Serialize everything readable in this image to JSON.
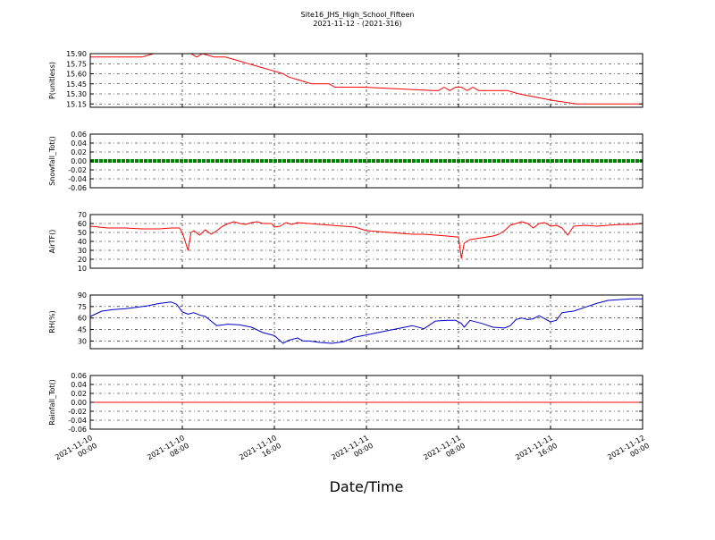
{
  "figure": {
    "title_line1": "Site16_JHS_High_School_Fifteen",
    "title_line2": "2021-11-12 - (2021-316)",
    "xlabel": "Date/Time",
    "x_ticks": [
      {
        "line1": "2021-11-10",
        "line2": "00:00"
      },
      {
        "line1": "2021-11-10",
        "line2": "08:00"
      },
      {
        "line1": "2021-11-10",
        "line2": "16:00"
      },
      {
        "line1": "2021-11-11",
        "line2": "00:00"
      },
      {
        "line1": "2021-11-11",
        "line2": "08:00"
      },
      {
        "line1": "2021-11-11",
        "line2": "16:00"
      },
      {
        "line1": "2021-11-12",
        "line2": "00:00"
      }
    ]
  },
  "chart_data": [
    {
      "type": "line",
      "ylabel": "P(unitless)",
      "ylim": [
        15.1,
        15.9
      ],
      "yticks": [
        15.15,
        15.3,
        15.45,
        15.6,
        15.75,
        15.9
      ],
      "ytick_labels": [
        "15.15",
        "15.30",
        "15.45",
        "15.60",
        "15.75",
        "15.90"
      ],
      "xlim": [
        "2021-11-10 00:00",
        "2021-11-12 00:00"
      ],
      "grid": true,
      "color": "#ff0000",
      "series": [
        {
          "x": [
            "2021-11-10 00:00",
            "2021-11-10 04:30",
            "2021-11-10 05:30",
            "2021-11-10 08:45",
            "2021-11-10 09:15",
            "2021-11-10 09:45",
            "2021-11-10 10:45",
            "2021-11-10 11:45",
            "2021-11-10 12:45",
            "2021-11-10 13:45",
            "2021-11-10 14:45",
            "2021-11-10 15:45",
            "2021-11-10 16:45",
            "2021-11-10 17:15",
            "2021-11-10 18:15",
            "2021-11-10 19:15",
            "2021-11-10 20:45",
            "2021-11-10 21:15",
            "2021-11-10 23:45",
            "2021-11-11 05:45",
            "2021-11-11 06:15",
            "2021-11-11 06:45",
            "2021-11-11 07:15",
            "2021-11-11 07:45",
            "2021-11-11 08:15",
            "2021-11-11 08:45",
            "2021-11-11 09:15",
            "2021-11-11 09:45",
            "2021-11-11 12:15",
            "2021-11-11 13:15",
            "2021-11-11 14:45",
            "2021-11-11 16:15",
            "2021-11-11 18:15",
            "2021-11-11 19:30",
            "2021-11-11 20:15",
            "2021-11-11 21:00",
            "2021-11-11 22:15",
            "2021-11-12 00:00"
          ],
          "y": [
            15.85,
            15.85,
            15.9,
            15.9,
            15.85,
            15.9,
            15.85,
            15.85,
            15.8,
            15.75,
            15.7,
            15.65,
            15.6,
            15.55,
            15.5,
            15.45,
            15.45,
            15.4,
            15.4,
            15.35,
            15.35,
            15.4,
            15.35,
            15.4,
            15.4,
            15.35,
            15.4,
            15.35,
            15.35,
            15.3,
            15.25,
            15.2,
            15.15,
            15.15,
            15.15,
            15.15,
            15.15,
            15.15
          ]
        }
      ]
    },
    {
      "type": "line",
      "ylabel": "Snowfall_Tot()",
      "ylim": [
        -0.06,
        0.06
      ],
      "yticks": [
        -0.06,
        -0.04,
        -0.02,
        0.0,
        0.02,
        0.04,
        0.06
      ],
      "ytick_labels": [
        "-0.06",
        "-0.04",
        "-0.02",
        "0.00",
        "0.02",
        "0.04",
        "0.06"
      ],
      "xlim": [
        "2021-11-10 00:00",
        "2021-11-12 00:00"
      ],
      "grid": true,
      "color": "#008000",
      "series": [
        {
          "x": [
            "2021-11-10 00:00",
            "2021-11-12 00:00"
          ],
          "y": [
            0.0,
            0.0
          ]
        }
      ]
    },
    {
      "type": "line",
      "ylabel": "AirTF()",
      "ylim": [
        10,
        70
      ],
      "yticks": [
        10,
        20,
        30,
        40,
        50,
        60,
        70
      ],
      "ytick_labels": [
        "10",
        "20",
        "30",
        "40",
        "50",
        "60",
        "70"
      ],
      "xlim": [
        "2021-11-10 00:00",
        "2021-11-12 00:00"
      ],
      "grid": true,
      "color": "#ff0000",
      "series": [
        {
          "x": [
            "2021-11-10 00:00",
            "2021-11-10 00:45",
            "2021-11-10 01:30",
            "2021-11-10 03:00",
            "2021-11-10 04:30",
            "2021-11-10 06:00",
            "2021-11-10 07:00",
            "2021-11-10 07:45",
            "2021-11-10 08:00",
            "2021-11-10 08:30",
            "2021-11-10 08:45",
            "2021-11-10 09:00",
            "2021-11-10 09:30",
            "2021-11-10 10:00",
            "2021-11-10 10:30",
            "2021-11-10 11:00",
            "2021-11-10 11:30",
            "2021-11-10 12:00",
            "2021-11-10 12:30",
            "2021-11-10 13:00",
            "2021-11-10 13:30",
            "2021-11-10 14:00",
            "2021-11-10 14:30",
            "2021-11-10 15:00",
            "2021-11-10 15:45",
            "2021-11-10 16:00",
            "2021-11-10 16:30",
            "2021-11-10 17:00",
            "2021-11-10 17:30",
            "2021-11-10 18:00",
            "2021-11-10 19:00",
            "2021-11-10 20:00",
            "2021-11-10 21:00",
            "2021-11-10 22:00",
            "2021-11-10 23:00",
            "2021-11-11 00:00",
            "2021-11-11 01:00",
            "2021-11-11 02:00",
            "2021-11-11 03:00",
            "2021-11-11 04:00",
            "2021-11-11 05:00",
            "2021-11-11 06:00",
            "2021-11-11 07:00",
            "2021-11-11 07:45",
            "2021-11-11 08:00",
            "2021-11-11 08:15",
            "2021-11-11 08:30",
            "2021-11-11 09:00",
            "2021-11-11 10:00",
            "2021-11-11 11:00",
            "2021-11-11 11:30",
            "2021-11-11 12:00",
            "2021-11-11 12:30",
            "2021-11-11 13:00",
            "2021-11-11 13:30",
            "2021-11-11 14:00",
            "2021-11-11 14:30",
            "2021-11-11 15:00",
            "2021-11-11 15:30",
            "2021-11-11 16:00",
            "2021-11-11 16:30",
            "2021-11-11 17:00",
            "2021-11-11 17:30",
            "2021-11-11 18:00",
            "2021-11-11 19:00",
            "2021-11-11 20:00",
            "2021-11-11 21:00",
            "2021-11-11 22:00",
            "2021-11-11 23:00",
            "2021-11-12 00:00"
          ],
          "y": [
            57,
            56,
            55,
            55,
            54,
            54,
            55,
            55,
            50,
            30,
            50,
            52,
            47,
            53,
            48,
            52,
            57,
            60,
            62,
            60,
            59,
            61,
            62,
            60,
            60,
            56,
            57,
            61,
            59,
            61,
            60,
            59,
            58,
            57,
            56,
            52,
            51,
            50,
            49,
            48,
            48,
            47,
            46,
            45,
            45,
            21,
            38,
            42,
            44,
            46,
            48,
            52,
            58,
            60,
            62,
            60,
            55,
            60,
            61,
            57,
            58,
            55,
            47,
            57,
            58,
            57,
            58,
            59,
            59,
            60
          ]
        }
      ]
    },
    {
      "type": "line",
      "ylabel": "RH(%)",
      "ylim": [
        20,
        90
      ],
      "yticks": [
        30,
        45,
        60,
        75,
        90
      ],
      "ytick_labels": [
        "30",
        "45",
        "60",
        "75",
        "90"
      ],
      "xlim": [
        "2021-11-10 00:00",
        "2021-11-12 00:00"
      ],
      "grid": true,
      "color": "#0000cc",
      "series": [
        {
          "x": [
            "2021-11-10 00:00",
            "2021-11-10 01:00",
            "2021-11-10 02:00",
            "2021-11-10 03:00",
            "2021-11-10 04:00",
            "2021-11-10 05:00",
            "2021-11-10 06:00",
            "2021-11-10 06:30",
            "2021-11-10 07:00",
            "2021-11-10 07:30",
            "2021-11-10 08:00",
            "2021-11-10 08:30",
            "2021-11-10 09:00",
            "2021-11-10 09:30",
            "2021-11-10 10:00",
            "2021-11-10 10:30",
            "2021-11-10 11:00",
            "2021-11-10 12:00",
            "2021-11-10 13:00",
            "2021-11-10 14:00",
            "2021-11-10 15:00",
            "2021-11-10 16:00",
            "2021-11-10 16:45",
            "2021-11-10 17:15",
            "2021-11-10 18:00",
            "2021-11-10 18:30",
            "2021-11-10 19:00",
            "2021-11-10 20:00",
            "2021-11-10 21:00",
            "2021-11-10 22:00",
            "2021-11-10 23:00",
            "2021-11-11 00:00",
            "2021-11-11 01:00",
            "2021-11-11 02:00",
            "2021-11-11 03:00",
            "2021-11-11 04:00",
            "2021-11-11 05:00",
            "2021-11-11 06:00",
            "2021-11-11 07:00",
            "2021-11-11 07:45",
            "2021-11-11 08:15",
            "2021-11-11 08:30",
            "2021-11-11 09:00",
            "2021-11-11 10:00",
            "2021-11-11 11:00",
            "2021-11-11 12:00",
            "2021-11-11 12:30",
            "2021-11-11 13:00",
            "2021-11-11 13:30",
            "2021-11-11 14:00",
            "2021-11-11 14:30",
            "2021-11-11 15:00",
            "2021-11-11 15:30",
            "2021-11-11 16:00",
            "2021-11-11 16:30",
            "2021-11-11 17:00",
            "2021-11-11 18:00",
            "2021-11-11 19:00",
            "2021-11-11 20:00",
            "2021-11-11 21:00",
            "2021-11-11 22:00",
            "2021-11-11 23:00",
            "2021-11-12 00:00"
          ],
          "y": [
            62,
            69,
            71,
            72,
            74,
            76,
            79,
            80,
            81,
            78,
            68,
            65,
            67,
            64,
            62,
            56,
            50,
            52,
            51,
            48,
            41,
            37,
            27,
            31,
            34,
            30,
            30,
            28,
            27,
            29,
            35,
            38,
            41,
            44,
            47,
            50,
            46,
            56,
            57,
            57,
            53,
            48,
            57,
            53,
            48,
            47,
            50,
            58,
            60,
            58,
            59,
            63,
            59,
            55,
            57,
            67,
            69,
            74,
            79,
            83,
            84,
            85,
            85
          ]
        }
      ]
    },
    {
      "type": "line",
      "ylabel": "Rainfall_Tot()",
      "ylim": [
        -0.06,
        0.06
      ],
      "yticks": [
        -0.06,
        -0.04,
        -0.02,
        0.0,
        0.02,
        0.04,
        0.06
      ],
      "ytick_labels": [
        "-0.06",
        "-0.04",
        "-0.02",
        "0.00",
        "0.02",
        "0.04",
        "0.06"
      ],
      "xlim": [
        "2021-11-10 00:00",
        "2021-11-12 00:00"
      ],
      "grid": true,
      "color": "#ff0000",
      "series": [
        {
          "x": [
            "2021-11-10 00:00",
            "2021-11-12 00:00"
          ],
          "y": [
            0.0,
            0.0
          ]
        }
      ]
    }
  ]
}
